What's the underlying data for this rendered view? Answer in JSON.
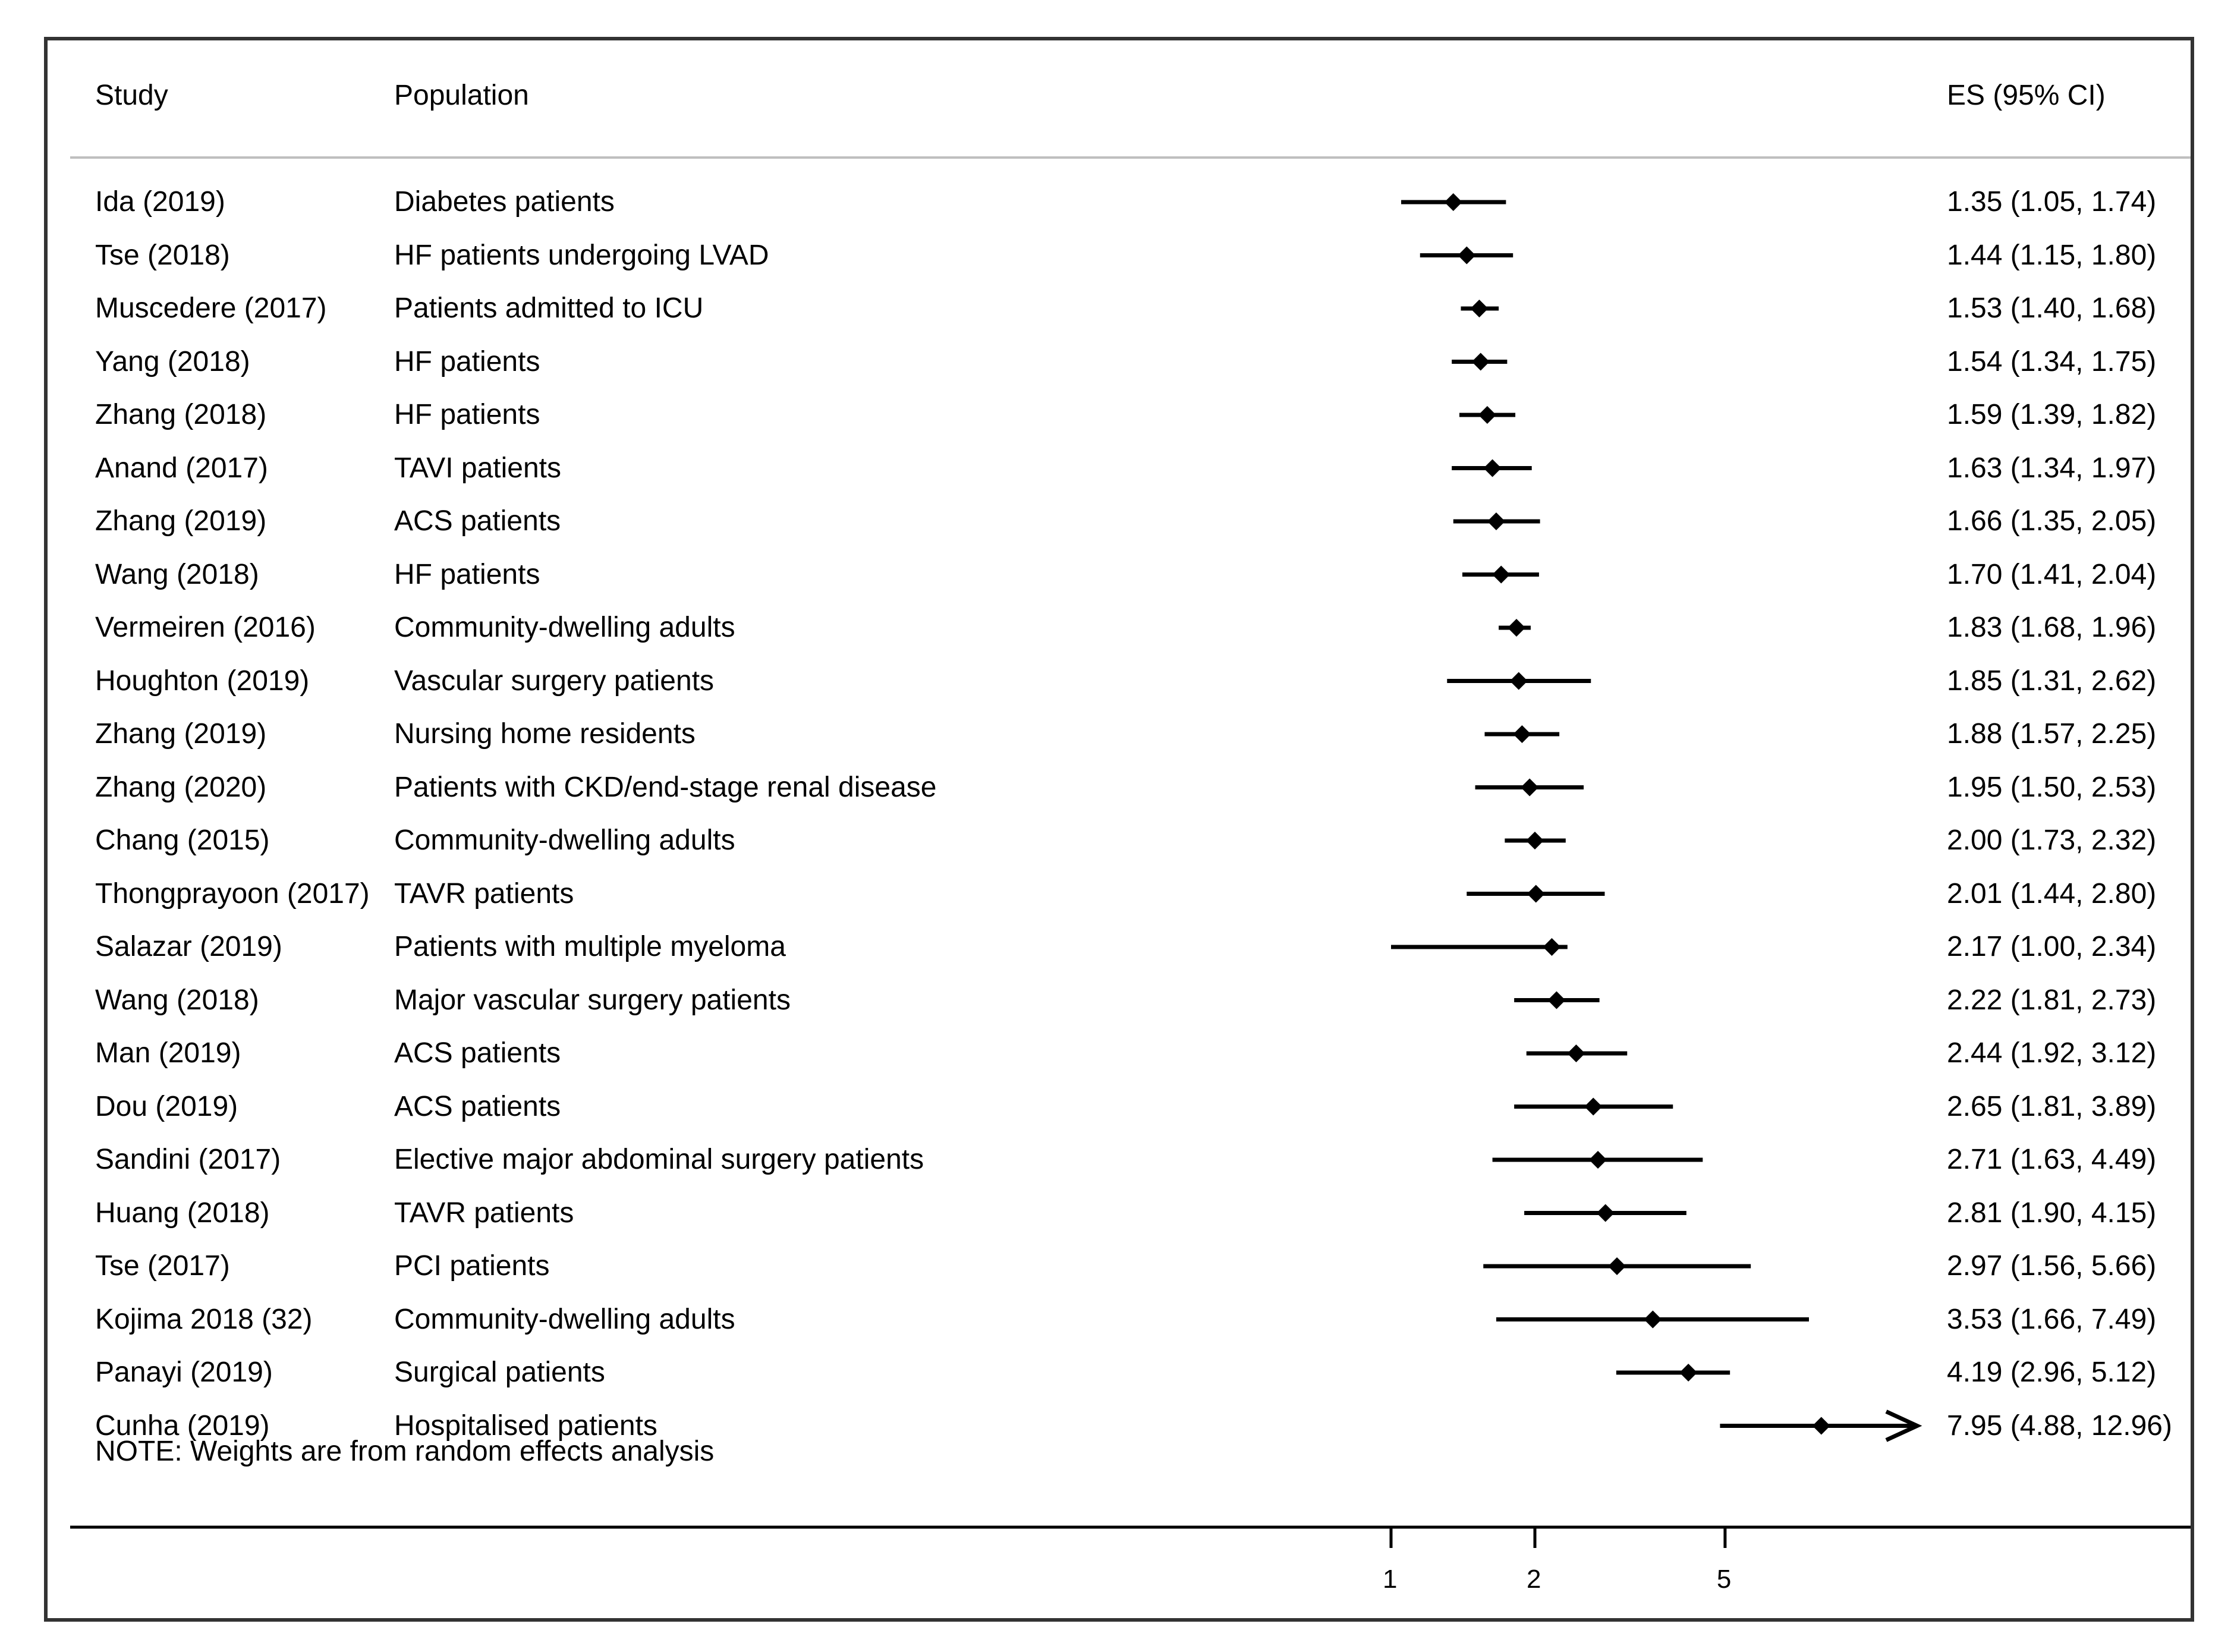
{
  "chart_data": {
    "type": "forest",
    "headers": {
      "study": "Study",
      "population": "Population",
      "es": "ES (95% CI)"
    },
    "x_scale": "log",
    "x_ticks": [
      "1",
      "2",
      "5"
    ],
    "x_tick_values": [
      1,
      2,
      5
    ],
    "note": "NOTE: Weights are from random effects analysis",
    "rows": [
      {
        "study": "Ida (2019)",
        "population": "Diabetes patients",
        "es": 1.35,
        "lo": 1.05,
        "hi": 1.74,
        "label": "1.35 (1.05, 1.74)"
      },
      {
        "study": "Tse (2018)",
        "population": "HF patients undergoing LVAD",
        "es": 1.44,
        "lo": 1.15,
        "hi": 1.8,
        "label": "1.44 (1.15, 1.80)"
      },
      {
        "study": "Muscedere (2017)",
        "population": "Patients admitted to ICU",
        "es": 1.53,
        "lo": 1.4,
        "hi": 1.68,
        "label": "1.53 (1.40, 1.68)"
      },
      {
        "study": "Yang (2018)",
        "population": "HF patients",
        "es": 1.54,
        "lo": 1.34,
        "hi": 1.75,
        "label": "1.54 (1.34, 1.75)"
      },
      {
        "study": "Zhang (2018)",
        "population": "HF patients",
        "es": 1.59,
        "lo": 1.39,
        "hi": 1.82,
        "label": "1.59 (1.39, 1.82)"
      },
      {
        "study": "Anand (2017)",
        "population": "TAVI patients",
        "es": 1.63,
        "lo": 1.34,
        "hi": 1.97,
        "label": "1.63 (1.34, 1.97)"
      },
      {
        "study": "Zhang (2019)",
        "population": "ACS patients",
        "es": 1.66,
        "lo": 1.35,
        "hi": 2.05,
        "label": "1.66 (1.35, 2.05)"
      },
      {
        "study": "Wang (2018)",
        "population": "HF patients",
        "es": 1.7,
        "lo": 1.41,
        "hi": 2.04,
        "label": "1.70 (1.41, 2.04)"
      },
      {
        "study": "Vermeiren (2016)",
        "population": "Community-dwelling adults",
        "es": 1.83,
        "lo": 1.68,
        "hi": 1.96,
        "label": "1.83 (1.68, 1.96)"
      },
      {
        "study": "Houghton (2019)",
        "population": "Vascular surgery patients",
        "es": 1.85,
        "lo": 1.31,
        "hi": 2.62,
        "label": "1.85 (1.31, 2.62)"
      },
      {
        "study": "Zhang (2019)",
        "population": "Nursing home residents",
        "es": 1.88,
        "lo": 1.57,
        "hi": 2.25,
        "label": "1.88 (1.57, 2.25)"
      },
      {
        "study": "Zhang (2020)",
        "population": "Patients with CKD/end-stage renal disease",
        "es": 1.95,
        "lo": 1.5,
        "hi": 2.53,
        "label": "1.95 (1.50, 2.53)"
      },
      {
        "study": "Chang (2015)",
        "population": "Community-dwelling adults",
        "es": 2.0,
        "lo": 1.73,
        "hi": 2.32,
        "label": "2.00 (1.73, 2.32)"
      },
      {
        "study": "Thongprayoon (2017)",
        "population": "TAVR patients",
        "es": 2.01,
        "lo": 1.44,
        "hi": 2.8,
        "label": "2.01 (1.44, 2.80)"
      },
      {
        "study": "Salazar (2019)",
        "population": "Patients with multiple myeloma",
        "es": 2.17,
        "lo": 1.0,
        "hi": 2.34,
        "label": "2.17 (1.00, 2.34)"
      },
      {
        "study": "Wang (2018)",
        "population": "Major vascular surgery patients",
        "es": 2.22,
        "lo": 1.81,
        "hi": 2.73,
        "label": "2.22 (1.81, 2.73)"
      },
      {
        "study": "Man (2019)",
        "population": "ACS patients",
        "es": 2.44,
        "lo": 1.92,
        "hi": 3.12,
        "label": "2.44 (1.92, 3.12)"
      },
      {
        "study": "Dou (2019)",
        "population": "ACS patients",
        "es": 2.65,
        "lo": 1.81,
        "hi": 3.89,
        "label": "2.65 (1.81, 3.89)"
      },
      {
        "study": "Sandini (2017)",
        "population": "Elective major abdominal surgery patients",
        "es": 2.71,
        "lo": 1.63,
        "hi": 4.49,
        "label": "2.71 (1.63, 4.49)"
      },
      {
        "study": "Huang (2018)",
        "population": "TAVR patients",
        "es": 2.81,
        "lo": 1.9,
        "hi": 4.15,
        "label": "2.81 (1.90, 4.15)"
      },
      {
        "study": "Tse (2017)",
        "population": "PCI patients",
        "es": 2.97,
        "lo": 1.56,
        "hi": 5.66,
        "label": "2.97 (1.56, 5.66)"
      },
      {
        "study": "Kojima 2018 (32)",
        "population": "Community-dwelling adults",
        "es": 3.53,
        "lo": 1.66,
        "hi": 7.49,
        "label": "3.53 (1.66, 7.49)"
      },
      {
        "study": "Panayi (2019)",
        "population": "Surgical patients",
        "es": 4.19,
        "lo": 2.96,
        "hi": 5.12,
        "label": "4.19 (2.96, 5.12)"
      },
      {
        "study": "Cunha (2019)",
        "population": "Hospitalised patients",
        "es": 7.95,
        "lo": 4.88,
        "hi": 12.96,
        "label": "7.95 (4.88, 12.96)",
        "truncated": true
      }
    ]
  }
}
